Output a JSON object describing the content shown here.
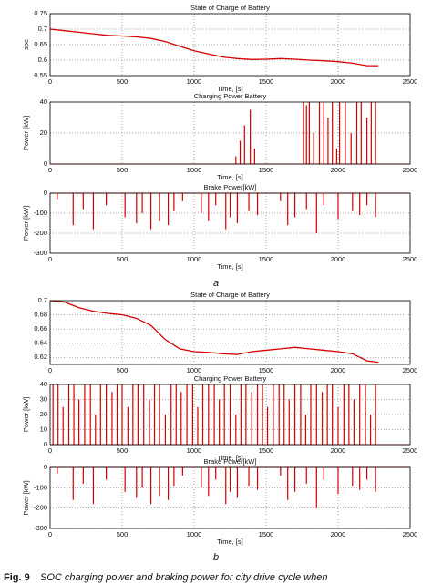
{
  "chart_data": [
    {
      "type": "line",
      "title": "State of Charge of Battery",
      "x_label": "Time, [s]",
      "y_label": "soc",
      "color": "#d40000",
      "grid": true,
      "xlim": [
        0,
        2500
      ],
      "xticks": [
        0,
        500,
        1000,
        1500,
        2000,
        2500
      ],
      "ylim": [
        0.55,
        0.75
      ],
      "yticks": [
        0.55,
        0.6,
        0.65,
        0.7,
        0.75
      ],
      "x": [
        0,
        100,
        200,
        300,
        400,
        500,
        600,
        700,
        800,
        900,
        1000,
        1100,
        1200,
        1300,
        1400,
        1500,
        1600,
        1700,
        1800,
        1900,
        2000,
        2100,
        2200,
        2280
      ],
      "values": [
        0.7,
        0.695,
        0.69,
        0.685,
        0.68,
        0.678,
        0.675,
        0.67,
        0.66,
        0.645,
        0.63,
        0.62,
        0.61,
        0.605,
        0.602,
        0.603,
        0.605,
        0.603,
        0.6,
        0.598,
        0.595,
        0.59,
        0.582,
        0.582
      ]
    },
    {
      "type": "bar",
      "title": "Charging Power Battery",
      "x_label": "Time, [s]",
      "y_label": "Power [kW]",
      "color": "#d40000",
      "grid": true,
      "xlim": [
        0,
        2500
      ],
      "xticks": [
        0,
        500,
        1000,
        1500,
        2000,
        2500
      ],
      "ylim": [
        0,
        40
      ],
      "yticks": [
        0,
        20,
        40
      ],
      "x": [
        1290,
        1320,
        1350,
        1390,
        1420,
        1760,
        1780,
        1800,
        1830,
        1870,
        1900,
        1930,
        1960,
        1990,
        2010,
        2050,
        2090,
        2130,
        2160,
        2200,
        2230,
        2260
      ],
      "values": [
        5,
        15,
        25,
        35,
        10,
        40,
        38,
        40,
        20,
        40,
        40,
        30,
        40,
        10,
        40,
        40,
        20,
        40,
        40,
        30,
        40,
        40
      ]
    },
    {
      "type": "bar",
      "title": "Brake Power[kW]",
      "x_label": "Time, [s]",
      "y_label": "Power [kW]",
      "color": "#d40000",
      "grid": true,
      "xlim": [
        0,
        2500
      ],
      "xticks": [
        0,
        500,
        1000,
        1500,
        2000,
        2500
      ],
      "ylim": [
        -300,
        0
      ],
      "yticks": [
        -300,
        -200,
        -100,
        0
      ],
      "x": [
        50,
        160,
        230,
        300,
        390,
        520,
        600,
        640,
        700,
        760,
        820,
        860,
        920,
        1050,
        1100,
        1150,
        1220,
        1250,
        1300,
        1380,
        1440,
        1600,
        1650,
        1700,
        1780,
        1850,
        1900,
        2000,
        2100,
        2150,
        2200,
        2260
      ],
      "values": [
        -30,
        -160,
        -80,
        -180,
        -60,
        -120,
        -150,
        -100,
        -180,
        -140,
        -160,
        -90,
        -40,
        -100,
        -140,
        -60,
        -180,
        -120,
        -150,
        -90,
        -110,
        -40,
        -160,
        -120,
        -80,
        -200,
        -60,
        -130,
        -90,
        -110,
        -60,
        -120
      ]
    },
    {
      "type": "line",
      "title": "State of Charge of Battery",
      "color": "#d40000",
      "grid": true,
      "xlim": [
        0,
        2500
      ],
      "xticks": [
        0,
        500,
        1000,
        1500,
        2000,
        2500
      ],
      "ylim": [
        0.61,
        0.7
      ],
      "yticks": [
        0.62,
        0.64,
        0.66,
        0.68,
        0.7
      ],
      "x": [
        0,
        100,
        200,
        300,
        400,
        500,
        600,
        700,
        800,
        900,
        1000,
        1100,
        1200,
        1300,
        1400,
        1500,
        1600,
        1700,
        1800,
        1900,
        2000,
        2100,
        2200,
        2280
      ],
      "values": [
        0.7,
        0.698,
        0.69,
        0.685,
        0.682,
        0.68,
        0.675,
        0.665,
        0.645,
        0.632,
        0.628,
        0.627,
        0.625,
        0.624,
        0.628,
        0.63,
        0.632,
        0.634,
        0.632,
        0.63,
        0.628,
        0.625,
        0.615,
        0.613
      ]
    },
    {
      "type": "bar",
      "title": "Charging Power Battery",
      "x_label": "Time, [s]",
      "y_label": "Power [kW]",
      "color": "#d40000",
      "grid": true,
      "xlim": [
        0,
        2500
      ],
      "xticks": [
        0,
        500,
        1000,
        1500,
        2000,
        2500
      ],
      "ylim": [
        0,
        40
      ],
      "yticks": [
        0,
        10,
        20,
        30,
        40
      ],
      "x": [
        20,
        55,
        90,
        130,
        165,
        200,
        240,
        280,
        315,
        350,
        390,
        430,
        465,
        500,
        540,
        575,
        610,
        650,
        690,
        725,
        760,
        800,
        840,
        875,
        910,
        950,
        990,
        1025,
        1060,
        1100,
        1140,
        1175,
        1210,
        1250,
        1290,
        1325,
        1360,
        1400,
        1440,
        1475,
        1510,
        1550,
        1590,
        1625,
        1660,
        1700,
        1740,
        1775,
        1810,
        1850,
        1890,
        1925,
        1960,
        2000,
        2040,
        2075,
        2110,
        2150,
        2190,
        2225,
        2260
      ],
      "values": [
        40,
        40,
        25,
        40,
        40,
        30,
        40,
        40,
        20,
        40,
        40,
        35,
        40,
        40,
        25,
        40,
        40,
        40,
        30,
        40,
        40,
        20,
        40,
        40,
        35,
        40,
        40,
        25,
        40,
        40,
        40,
        30,
        40,
        40,
        20,
        40,
        40,
        35,
        40,
        40,
        25,
        40,
        40,
        40,
        30,
        40,
        40,
        20,
        40,
        40,
        35,
        40,
        40,
        25,
        40,
        40,
        30,
        40,
        40,
        20,
        40
      ]
    },
    {
      "type": "bar",
      "title": "Brake Power[kW]",
      "x_label": "Time, [s]",
      "y_label": "Power [kW]",
      "color": "#d40000",
      "grid": true,
      "xlim": [
        0,
        2500
      ],
      "xticks": [
        0,
        500,
        1000,
        1500,
        2000,
        2500
      ],
      "ylim": [
        -300,
        0
      ],
      "yticks": [
        -300,
        -200,
        -100,
        0
      ],
      "x": [
        50,
        160,
        230,
        300,
        390,
        520,
        600,
        640,
        700,
        760,
        820,
        860,
        920,
        1050,
        1100,
        1150,
        1220,
        1250,
        1300,
        1380,
        1440,
        1600,
        1650,
        1700,
        1780,
        1850,
        1900,
        2000,
        2100,
        2150,
        2200,
        2260
      ],
      "values": [
        -30,
        -160,
        -80,
        -180,
        -60,
        -120,
        -150,
        -100,
        -180,
        -140,
        -160,
        -90,
        -40,
        -100,
        -140,
        -60,
        -180,
        -120,
        -150,
        -90,
        -110,
        -40,
        -160,
        -120,
        -80,
        -200,
        -60,
        -130,
        -90,
        -110,
        -60,
        -120
      ]
    }
  ],
  "panel_labels": [
    "a",
    "b"
  ],
  "caption": {
    "label": "Fig. 9",
    "text": "SOC charging power and braking power for city drive cycle when"
  }
}
